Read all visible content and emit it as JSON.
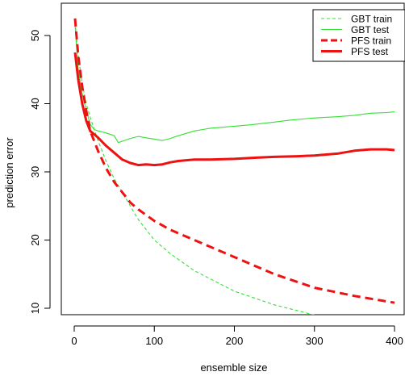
{
  "chart_data": {
    "type": "line",
    "title": "",
    "xlabel": "ensemble size",
    "ylabel": "prediction error",
    "xlim": [
      0,
      400
    ],
    "ylim": [
      9,
      54
    ],
    "xticks": [
      0,
      100,
      200,
      300,
      400
    ],
    "yticks": [
      10,
      20,
      30,
      40,
      50
    ],
    "grid": false,
    "legend_position": "top-right",
    "series": [
      {
        "name": "GBT train",
        "color": "#33e033",
        "dash": "dashed",
        "width": "thin",
        "x": [
          1,
          5,
          10,
          15,
          20,
          30,
          40,
          50,
          60,
          80,
          100,
          120,
          150,
          200,
          250,
          300,
          305
        ],
        "y": [
          52.0,
          47.0,
          43.0,
          40.0,
          38.0,
          34.5,
          31.5,
          29.0,
          27.0,
          23.0,
          20.0,
          18.0,
          15.5,
          12.5,
          10.5,
          9.0,
          8.8
        ]
      },
      {
        "name": "GBT test",
        "color": "#33e033",
        "dash": "solid",
        "width": "thin",
        "x": [
          1,
          5,
          10,
          15,
          20,
          25,
          30,
          40,
          50,
          55,
          60,
          70,
          80,
          90,
          100,
          110,
          120,
          130,
          150,
          170,
          200,
          220,
          250,
          270,
          300,
          330,
          350,
          370,
          390,
          400
        ],
        "y": [
          51.5,
          45.0,
          41.5,
          39.0,
          37.0,
          36.2,
          36.0,
          35.7,
          35.3,
          34.3,
          34.5,
          34.9,
          35.2,
          35.0,
          34.8,
          34.6,
          34.9,
          35.3,
          36.0,
          36.4,
          36.7,
          36.9,
          37.3,
          37.6,
          37.9,
          38.1,
          38.3,
          38.6,
          38.7,
          38.8
        ]
      },
      {
        "name": "PFS train",
        "color": "#ee1111",
        "dash": "dashed",
        "width": "thick",
        "x": [
          1,
          5,
          10,
          15,
          20,
          30,
          40,
          50,
          60,
          70,
          80,
          100,
          120,
          150,
          200,
          250,
          300,
          350,
          400
        ],
        "y": [
          52.5,
          47.0,
          42.5,
          39.0,
          36.0,
          33.0,
          30.5,
          28.5,
          27.0,
          25.5,
          24.5,
          22.8,
          21.5,
          20.0,
          17.5,
          15.0,
          13.0,
          11.8,
          10.8
        ]
      },
      {
        "name": "PFS test",
        "color": "#ee1111",
        "dash": "solid",
        "width": "thick",
        "x": [
          1,
          5,
          10,
          15,
          20,
          25,
          30,
          40,
          50,
          60,
          70,
          80,
          90,
          100,
          110,
          120,
          130,
          150,
          170,
          200,
          230,
          250,
          280,
          300,
          330,
          350,
          370,
          390,
          400
        ],
        "y": [
          47.5,
          43.5,
          40.0,
          37.5,
          36.0,
          35.5,
          35.0,
          33.8,
          32.8,
          31.8,
          31.3,
          31.0,
          31.1,
          31.0,
          31.1,
          31.4,
          31.6,
          31.8,
          31.8,
          31.9,
          32.1,
          32.2,
          32.3,
          32.4,
          32.7,
          33.1,
          33.3,
          33.3,
          33.2
        ]
      }
    ]
  }
}
